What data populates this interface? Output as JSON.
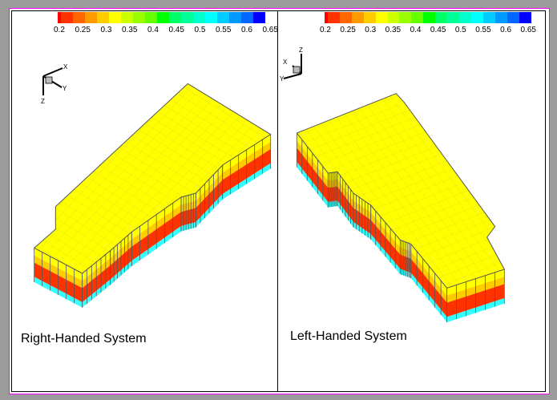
{
  "colorbar": {
    "ticks": [
      "0.2",
      "0.25",
      "0.3",
      "0.35",
      "0.4",
      "0.45",
      "0.5",
      "0.55",
      "0.6",
      "0.65"
    ],
    "colors": [
      "#ff0000",
      "#ff3300",
      "#ff6600",
      "#ff9900",
      "#ffcc00",
      "#ffff00",
      "#ccff00",
      "#99ff00",
      "#66ff00",
      "#00ff00",
      "#00ff66",
      "#00ff99",
      "#00ffcc",
      "#00ffff",
      "#00ccff",
      "#0099ff",
      "#0066ff",
      "#0000ff"
    ]
  },
  "panels": [
    {
      "caption": "Right-Handed System",
      "axes": {
        "x": "X",
        "y": "Y",
        "z": "Z"
      }
    },
    {
      "caption": "Left-Handed System",
      "axes": {
        "x": "X",
        "y": "Y",
        "z": "Z"
      }
    }
  ],
  "layer_colors": {
    "top": "#ffff00",
    "upper": "#ffcc00",
    "middle": "#ff3300",
    "bottom": "#33ffff",
    "grid": "#555555"
  }
}
